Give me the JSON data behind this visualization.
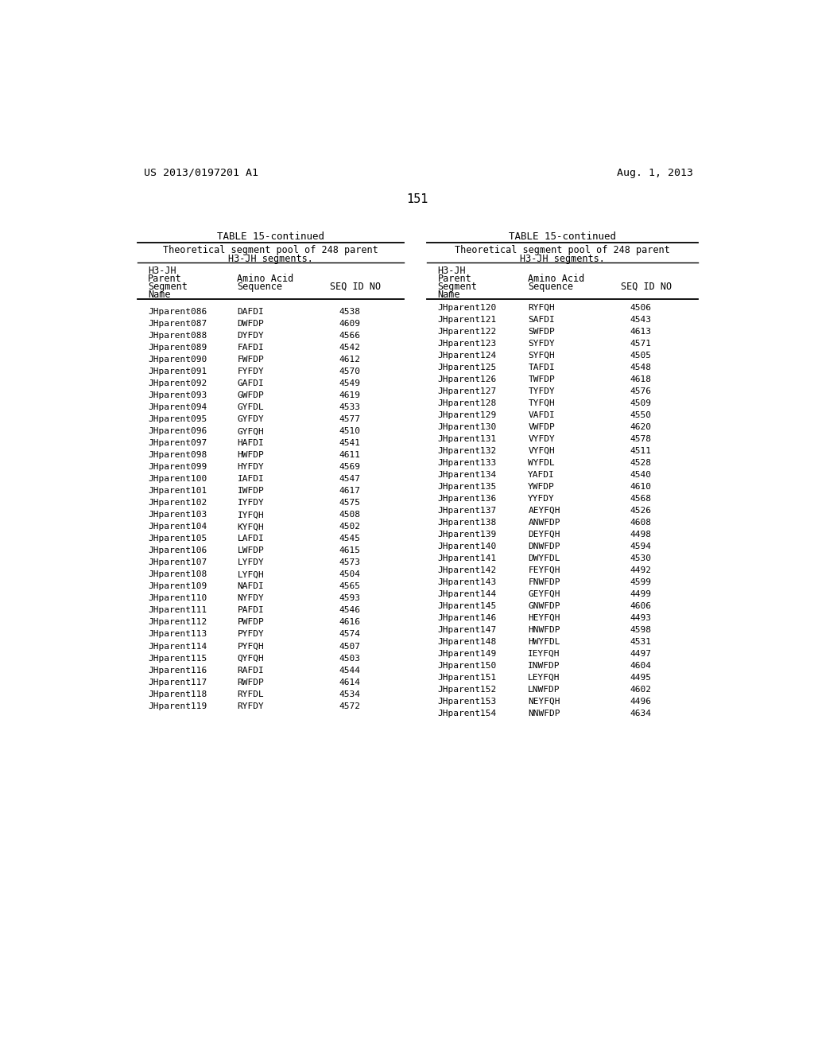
{
  "patent_number": "US 2013/0197201 A1",
  "patent_date": "Aug. 1, 2013",
  "page_number": "151",
  "table_title": "TABLE 15-continued",
  "table_subtitle1": "Theoretical segment pool of 248 parent",
  "table_subtitle2": "H3-JH segments.",
  "header_lines": [
    "H3-JH",
    "Parent",
    "Segment",
    "Name"
  ],
  "header_col2_line1": "Amino Acid",
  "header_col2_line2": "Sequence",
  "header_col3": "SEQ ID NO",
  "left_data": [
    [
      "JHparent086",
      "DAFDI",
      "4538"
    ],
    [
      "JHparent087",
      "DWFDP",
      "4609"
    ],
    [
      "JHparent088",
      "DYFDY",
      "4566"
    ],
    [
      "JHparent089",
      "FAFDI",
      "4542"
    ],
    [
      "JHparent090",
      "FWFDP",
      "4612"
    ],
    [
      "JHparent091",
      "FYFDY",
      "4570"
    ],
    [
      "JHparent092",
      "GAFDI",
      "4549"
    ],
    [
      "JHparent093",
      "GWFDP",
      "4619"
    ],
    [
      "JHparent094",
      "GYFDL",
      "4533"
    ],
    [
      "JHparent095",
      "GYFDY",
      "4577"
    ],
    [
      "JHparent096",
      "GYFQH",
      "4510"
    ],
    [
      "JHparent097",
      "HAFDI",
      "4541"
    ],
    [
      "JHparent098",
      "HWFDP",
      "4611"
    ],
    [
      "JHparent099",
      "HYFDY",
      "4569"
    ],
    [
      "JHparent100",
      "IAFDI",
      "4547"
    ],
    [
      "JHparent101",
      "IWFDP",
      "4617"
    ],
    [
      "JHparent102",
      "IYFDY",
      "4575"
    ],
    [
      "JHparent103",
      "IYFQH",
      "4508"
    ],
    [
      "JHparent104",
      "KYFQH",
      "4502"
    ],
    [
      "JHparent105",
      "LAFDI",
      "4545"
    ],
    [
      "JHparent106",
      "LWFDP",
      "4615"
    ],
    [
      "JHparent107",
      "LYFDY",
      "4573"
    ],
    [
      "JHparent108",
      "LYFQH",
      "4504"
    ],
    [
      "JHparent109",
      "NAFDI",
      "4565"
    ],
    [
      "JHparent110",
      "NYFDY",
      "4593"
    ],
    [
      "JHparent111",
      "PAFDI",
      "4546"
    ],
    [
      "JHparent112",
      "PWFDP",
      "4616"
    ],
    [
      "JHparent113",
      "PYFDY",
      "4574"
    ],
    [
      "JHparent114",
      "PYFQH",
      "4507"
    ],
    [
      "JHparent115",
      "QYFQH",
      "4503"
    ],
    [
      "JHparent116",
      "RAFDI",
      "4544"
    ],
    [
      "JHparent117",
      "RWFDP",
      "4614"
    ],
    [
      "JHparent118",
      "RYFDL",
      "4534"
    ],
    [
      "JHparent119",
      "RYFDY",
      "4572"
    ]
  ],
  "right_data": [
    [
      "JHparent120",
      "RYFQH",
      "4506"
    ],
    [
      "JHparent121",
      "SAFDI",
      "4543"
    ],
    [
      "JHparent122",
      "SWFDP",
      "4613"
    ],
    [
      "JHparent123",
      "SYFDY",
      "4571"
    ],
    [
      "JHparent124",
      "SYFQH",
      "4505"
    ],
    [
      "JHparent125",
      "TAFDI",
      "4548"
    ],
    [
      "JHparent126",
      "TWFDP",
      "4618"
    ],
    [
      "JHparent127",
      "TYFDY",
      "4576"
    ],
    [
      "JHparent128",
      "TYFQH",
      "4509"
    ],
    [
      "JHparent129",
      "VAFDI",
      "4550"
    ],
    [
      "JHparent130",
      "VWFDP",
      "4620"
    ],
    [
      "JHparent131",
      "VYFDY",
      "4578"
    ],
    [
      "JHparent132",
      "VYFQH",
      "4511"
    ],
    [
      "JHparent133",
      "WYFDL",
      "4528"
    ],
    [
      "JHparent134",
      "YAFDI",
      "4540"
    ],
    [
      "JHparent135",
      "YWFDP",
      "4610"
    ],
    [
      "JHparent136",
      "YYFDY",
      "4568"
    ],
    [
      "JHparent137",
      "AEYFQH",
      "4526"
    ],
    [
      "JHparent138",
      "ANWFDP",
      "4608"
    ],
    [
      "JHparent139",
      "DEYFQH",
      "4498"
    ],
    [
      "JHparent140",
      "DNWFDP",
      "4594"
    ],
    [
      "JHparent141",
      "DWYFDL",
      "4530"
    ],
    [
      "JHparent142",
      "FEYFQH",
      "4492"
    ],
    [
      "JHparent143",
      "FNWFDP",
      "4599"
    ],
    [
      "JHparent144",
      "GEYFQH",
      "4499"
    ],
    [
      "JHparent145",
      "GNWFDP",
      "4606"
    ],
    [
      "JHparent146",
      "HEYFQH",
      "4493"
    ],
    [
      "JHparent147",
      "HNWFDP",
      "4598"
    ],
    [
      "JHparent148",
      "HWYFDL",
      "4531"
    ],
    [
      "JHparent149",
      "IEYFQH",
      "4497"
    ],
    [
      "JHparent150",
      "INWFDP",
      "4604"
    ],
    [
      "JHparent151",
      "LEYFQH",
      "4495"
    ],
    [
      "JHparent152",
      "LNWFDP",
      "4602"
    ],
    [
      "JHparent153",
      "NEYFQH",
      "4496"
    ],
    [
      "JHparent154",
      "NNWFDP",
      "4634"
    ]
  ],
  "bg_color": "#ffffff",
  "text_color": "#000000"
}
